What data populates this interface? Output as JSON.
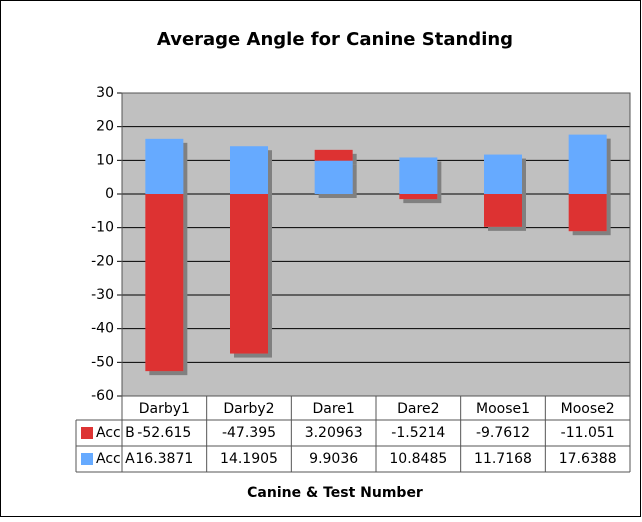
{
  "chart_data": {
    "type": "stacked-bar",
    "title": "Average Angle for Canine Standing",
    "x_label": "Canine & Test Number",
    "categories": [
      "Darby1",
      "Darby2",
      "Dare1",
      "Dare2",
      "Moose1",
      "Moose2"
    ],
    "series": [
      {
        "name": "Acc B",
        "color": "#dd3333",
        "values": [
          -52.615,
          -47.395,
          3.20963,
          -1.5214,
          -9.7612,
          -11.051
        ]
      },
      {
        "name": "Acc A",
        "color": "#66aaff",
        "values": [
          16.3871,
          14.1905,
          9.9036,
          10.8485,
          11.7168,
          17.6388
        ]
      }
    ],
    "ylim": [
      -60,
      30
    ],
    "yticks": [
      -60,
      -50,
      -40,
      -30,
      -20,
      -10,
      0,
      10,
      20,
      30
    ],
    "grid": true
  }
}
